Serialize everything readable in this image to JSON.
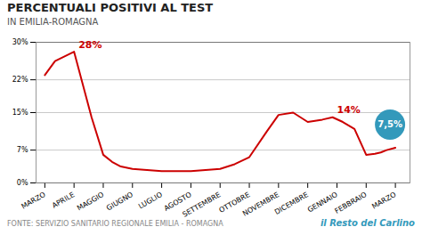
{
  "chart_data": {
    "type": "line",
    "title": "PERCENTUALI POSITIVI AL TEST",
    "subtitle": "IN EMILIA-ROMAGNA",
    "source": "FONTE: SERVIZIO SANITARIO REGIONALE EMILIA - ROMAGNA",
    "brand": "il Resto del Carlino",
    "x": [
      0,
      0.35,
      1.0,
      1.6,
      2.0,
      2.3,
      2.6,
      3.0,
      4.0,
      5.0,
      6.0,
      6.5,
      7.0,
      7.6,
      8.0,
      8.5,
      9.0,
      9.5,
      9.85,
      10.2,
      10.6,
      11.0,
      11.3,
      11.5,
      11.7,
      12.0
    ],
    "values": [
      23,
      26,
      28,
      14,
      6.0,
      4.5,
      3.5,
      3.0,
      2.5,
      2.5,
      3.0,
      4.0,
      5.5,
      11.0,
      14.5,
      15.0,
      13.0,
      13.5,
      14.0,
      13.0,
      11.5,
      6.0,
      6.2,
      6.5,
      7.0,
      7.5
    ],
    "color": "#cc0000",
    "xlim": [
      -0.3,
      12.5
    ],
    "xticks": [
      {
        "value": 0,
        "label": "MARZO"
      },
      {
        "value": 1,
        "label": "APRILE"
      },
      {
        "value": 2,
        "label": "MAGGIO"
      },
      {
        "value": 3,
        "label": "GIUGNO"
      },
      {
        "value": 4,
        "label": "LUGLIO"
      },
      {
        "value": 5,
        "label": "AGOSTO"
      },
      {
        "value": 6,
        "label": "SETTEMBRE"
      },
      {
        "value": 7,
        "label": "OTTOBRE"
      },
      {
        "value": 8,
        "label": "NOVEMBRE"
      },
      {
        "value": 9,
        "label": "DICEMBRE"
      },
      {
        "value": 10,
        "label": "GENNAIO"
      },
      {
        "value": 11,
        "label": "FEBBRAIO"
      },
      {
        "value": 12,
        "label": "MARZO"
      }
    ],
    "ylim": [
      0,
      30
    ],
    "yticks": [
      {
        "value": 0,
        "label": "0%"
      },
      {
        "value": 7,
        "label": "7%"
      },
      {
        "value": 15,
        "label": "15%"
      },
      {
        "value": 22,
        "label": "22%"
      },
      {
        "value": 30,
        "label": "30%"
      }
    ],
    "grid": true,
    "annotations": [
      {
        "text": "28%",
        "x": 1.0,
        "y": 28,
        "color": "#cc0000"
      },
      {
        "text": "14%",
        "x": 9.85,
        "y": 14.0,
        "color": "#cc0000"
      },
      {
        "text": "7,5%",
        "x": 12.0,
        "y": 7.5,
        "color": "#3399bb",
        "marker": "circle"
      }
    ]
  }
}
